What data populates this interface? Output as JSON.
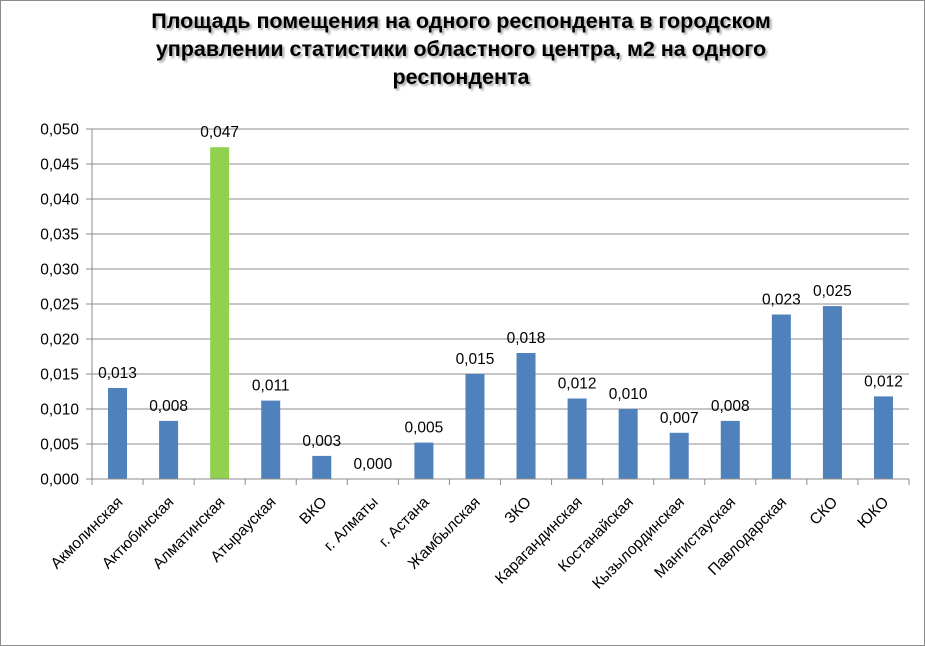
{
  "chart_data": {
    "type": "bar",
    "title": "Площадь помещения на одного респондента в городском управлении статистики областного центра, м2 на одного респондента",
    "title_lines": [
      "Площадь помещения на одного респондента в городском",
      "управлении статистики областного центра, м2 на одного",
      "респондента"
    ],
    "xlabel": "",
    "ylabel": "",
    "ylim": [
      0,
      0.05
    ],
    "yticks": [
      "0,000",
      "0,005",
      "0,010",
      "0,015",
      "0,020",
      "0,025",
      "0,030",
      "0,035",
      "0,040",
      "0,045",
      "0,050"
    ],
    "grid": true,
    "legend": "none",
    "categories": [
      "Акмолинская",
      "Актюбинская",
      "Алматинская",
      "Атырауская",
      "ВКО",
      "г. Алматы",
      "г. Астана",
      "Жамбылская",
      "ЗКО",
      "Карагандинская",
      "Костанайская",
      "Кызылординская",
      "Мангистауская",
      "Павлодарская",
      "СКО",
      "ЮКО"
    ],
    "values": [
      0.013,
      0.0083,
      0.0474,
      0.0112,
      0.0033,
      0.0,
      0.0052,
      0.015,
      0.018,
      0.0115,
      0.01,
      0.0066,
      0.0083,
      0.0235,
      0.0247,
      0.0118
    ],
    "data_labels": [
      "0,013",
      "0,008",
      "0,047",
      "0,011",
      "0,003",
      "0,000",
      "0,005",
      "0,015",
      "0,018",
      "0,012",
      "0,010",
      "0,007",
      "0,008",
      "0,023",
      "0,025",
      "0,012"
    ],
    "colors": {
      "default_bar": "#4f81bd",
      "highlight_bar": "#92d050",
      "gridline": "#8c8c8c",
      "axis": "#8c8c8c"
    },
    "highlight_index": 2
  }
}
